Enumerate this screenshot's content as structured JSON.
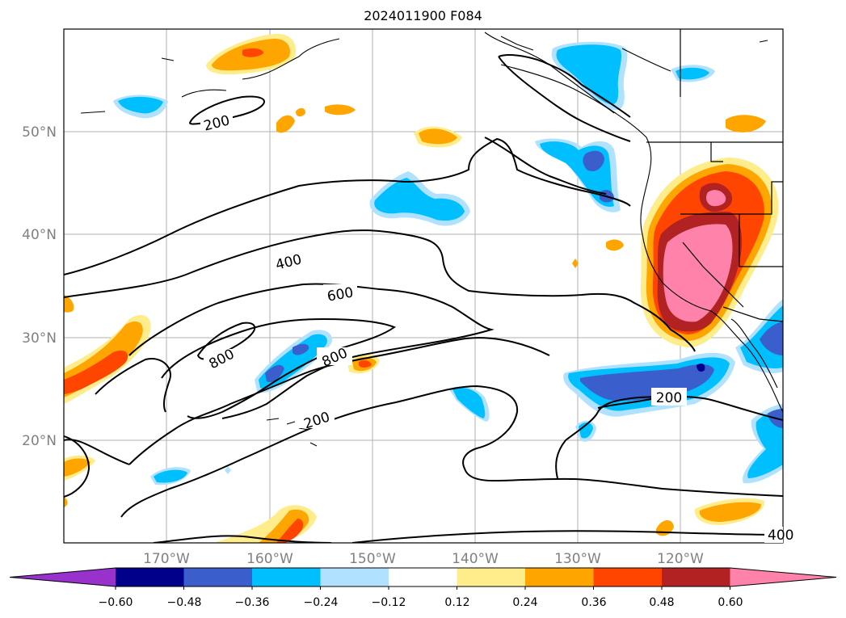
{
  "title": "2024011900 F084",
  "lat_labels": [
    "50°N",
    "40°N",
    "30°N",
    "20°N"
  ],
  "lon_labels": [
    "170°W",
    "160°W",
    "150°W",
    "140°W",
    "130°W",
    "120°W"
  ],
  "contour_labels": [
    "200",
    "400",
    "600",
    "800",
    "800",
    "200",
    "200",
    "400"
  ],
  "colorbar": {
    "tick_labels": [
      "−0.60",
      "−0.48",
      "−0.36",
      "−0.24",
      "−0.12",
      "0.12",
      "0.24",
      "0.36",
      "0.48",
      "0.60"
    ],
    "colors": [
      "#9932cc",
      "#00008b",
      "#3a5fcd",
      "#00bfff",
      "#b0e2ff",
      "#ffffff",
      "#ffec8b",
      "#ffa500",
      "#ff4500",
      "#b22222",
      "#ff82ab"
    ],
    "extend": "both"
  }
}
